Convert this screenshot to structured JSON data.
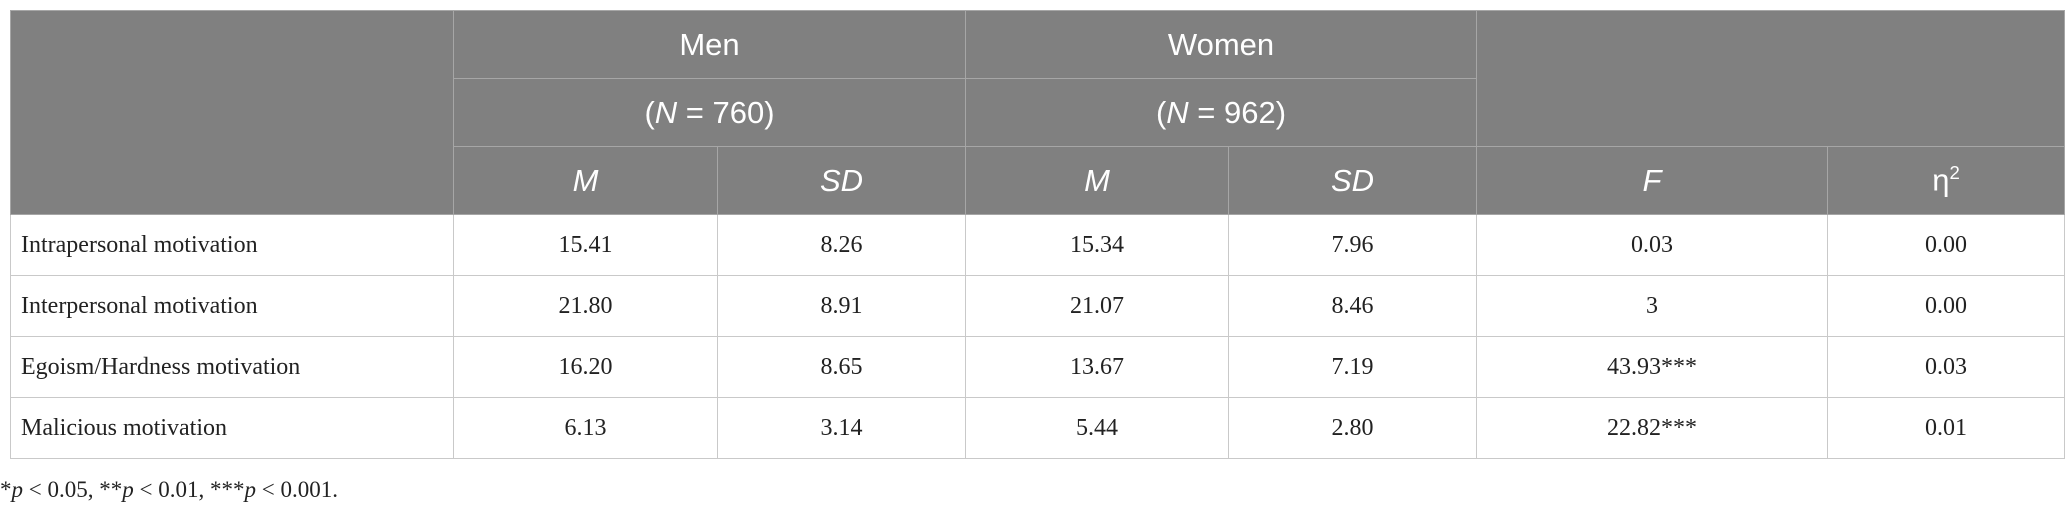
{
  "table": {
    "groups": [
      {
        "name": "Men",
        "n": [
          "(",
          "N",
          " = 760)"
        ]
      },
      {
        "name": "Women",
        "n": [
          "(",
          "N",
          " = 962)"
        ]
      }
    ],
    "columns": [
      "M",
      "SD",
      "M",
      "SD",
      "F",
      [
        "η",
        "2"
      ]
    ],
    "rows": [
      [
        "Intrapersonal motivation",
        "15.41",
        "8.26",
        "15.34",
        "7.96",
        "0.03",
        "0.00"
      ],
      [
        "Interpersonal motivation",
        "21.80",
        "8.91",
        "21.07",
        "8.46",
        "3",
        "0.00"
      ],
      [
        "Egoism/Hardness motivation",
        "16.20",
        "8.65",
        "13.67",
        "7.19",
        "43.93***",
        "0.03"
      ],
      [
        "Malicious motivation",
        "6.13",
        "3.14",
        "5.44",
        "2.80",
        "22.82***",
        "0.01"
      ]
    ]
  },
  "footnote": [
    "*",
    "p",
    " < 0.05, **",
    "p",
    " < 0.01, ***",
    "p",
    " < 0.001."
  ]
}
